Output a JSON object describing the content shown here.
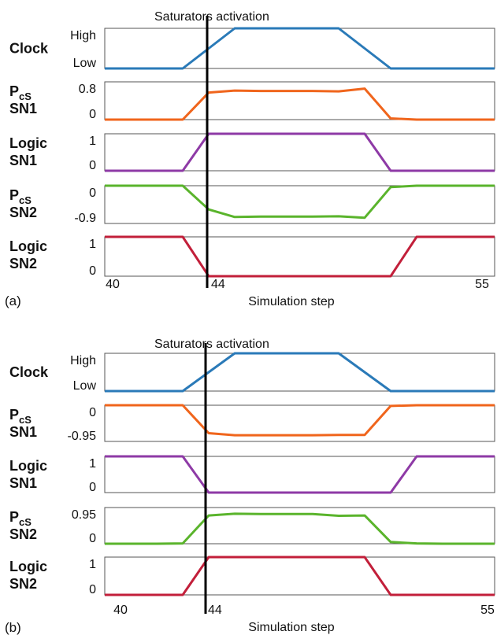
{
  "chart_data": [
    {
      "type": "line",
      "panel_label": "(a)",
      "annotation": "Saturators activation",
      "activation_x": 44,
      "xlabel": "Simulation step",
      "xlim": [
        40,
        55
      ],
      "x_tick_labels": [
        "40",
        "44",
        "55"
      ],
      "x": [
        40,
        41,
        42,
        43,
        44,
        45,
        46,
        47,
        48,
        49,
        50,
        51,
        52,
        53,
        54,
        55
      ],
      "series": [
        {
          "name": "Clock",
          "color": "#2a7ab8",
          "ylim": [
            0,
            1
          ],
          "ytick_labels": [
            "High",
            "Low"
          ],
          "values": [
            0,
            0,
            0,
            0,
            0.5,
            1,
            1,
            1,
            1,
            1,
            0.5,
            0,
            0,
            0,
            0,
            0
          ]
        },
        {
          "name_main": "P",
          "name_sub": "cS",
          "name_line2": "SN1",
          "color": "#f0651c",
          "ylim": [
            0,
            0.95
          ],
          "ytick_labels": [
            "0.8",
            "0"
          ],
          "values": [
            0,
            0,
            0,
            0,
            0.68,
            0.73,
            0.72,
            0.72,
            0.72,
            0.71,
            0.78,
            0.03,
            0,
            0,
            0,
            0
          ]
        },
        {
          "name": "Logic",
          "name_line2": "SN1",
          "color": "#8e3aa6",
          "ylim": [
            0,
            1
          ],
          "ytick_labels": [
            "1",
            "0"
          ],
          "values": [
            0,
            0,
            0,
            0,
            1,
            1,
            1,
            1,
            1,
            1,
            1,
            0,
            0,
            0,
            0,
            0
          ]
        },
        {
          "name_main": "P",
          "name_sub": "cS",
          "name_line2": "SN2",
          "color": "#5ab42c",
          "ylim": [
            -1.05,
            0
          ],
          "ytick_labels": [
            "0",
            "-0.9"
          ],
          "values": [
            0,
            0,
            0,
            0,
            -0.66,
            -0.87,
            -0.86,
            -0.86,
            -0.86,
            -0.85,
            -0.89,
            -0.04,
            0,
            0,
            0,
            0
          ]
        },
        {
          "name": "Logic",
          "name_line2": "SN2",
          "color": "#c21f3a",
          "ylim": [
            0,
            1
          ],
          "ytick_labels": [
            "1",
            "0"
          ],
          "values": [
            1,
            1,
            1,
            1,
            0,
            0,
            0,
            0,
            0,
            0,
            0,
            0,
            1,
            1,
            1,
            1
          ]
        }
      ]
    },
    {
      "type": "line",
      "panel_label": "(b)",
      "annotation": "Saturators activation",
      "activation_x": 44,
      "xlabel": "Simulation step",
      "xlim": [
        40,
        55
      ],
      "x_tick_labels": [
        "40",
        "44",
        "55"
      ],
      "x": [
        40,
        41,
        42,
        43,
        44,
        45,
        46,
        47,
        48,
        49,
        50,
        51,
        52,
        53,
        54,
        55
      ],
      "series": [
        {
          "name": "Clock",
          "color": "#2a7ab8",
          "ylim": [
            0,
            1
          ],
          "ytick_labels": [
            "High",
            "Low"
          ],
          "values": [
            0,
            0,
            0,
            0,
            0.5,
            1,
            1,
            1,
            1,
            1,
            0.5,
            0,
            0,
            0,
            0,
            0
          ]
        },
        {
          "name_main": "P",
          "name_sub": "cS",
          "name_line2": "SN1",
          "color": "#f0651c",
          "ylim": [
            -1.05,
            0
          ],
          "ytick_labels": [
            "0",
            "-0.95"
          ],
          "values": [
            0,
            0,
            0,
            0,
            -0.81,
            -0.87,
            -0.87,
            -0.87,
            -0.87,
            -0.86,
            -0.86,
            -0.02,
            0,
            0,
            0,
            0
          ]
        },
        {
          "name": "Logic",
          "name_line2": "SN1",
          "color": "#8e3aa6",
          "ylim": [
            0,
            1
          ],
          "ytick_labels": [
            "1",
            "0"
          ],
          "values": [
            1,
            1,
            1,
            1,
            0,
            0,
            0,
            0,
            0,
            0,
            0,
            0,
            1,
            1,
            1,
            1
          ]
        },
        {
          "name_main": "P",
          "name_sub": "cS",
          "name_line2": "SN2",
          "color": "#5ab42c",
          "ylim": [
            0,
            1.05
          ],
          "ytick_labels": [
            "0.95",
            "0"
          ],
          "values": [
            0,
            0,
            0,
            0.01,
            0.82,
            0.87,
            0.86,
            0.86,
            0.86,
            0.81,
            0.82,
            0.05,
            0.01,
            0,
            0,
            0
          ]
        },
        {
          "name": "Logic",
          "name_line2": "SN2",
          "color": "#c21f3a",
          "ylim": [
            0,
            1
          ],
          "ytick_labels": [
            "1",
            "0"
          ],
          "values": [
            0,
            0,
            0,
            0,
            1,
            1,
            1,
            1,
            1,
            1,
            1,
            0,
            0,
            0,
            0,
            0
          ]
        }
      ]
    }
  ]
}
